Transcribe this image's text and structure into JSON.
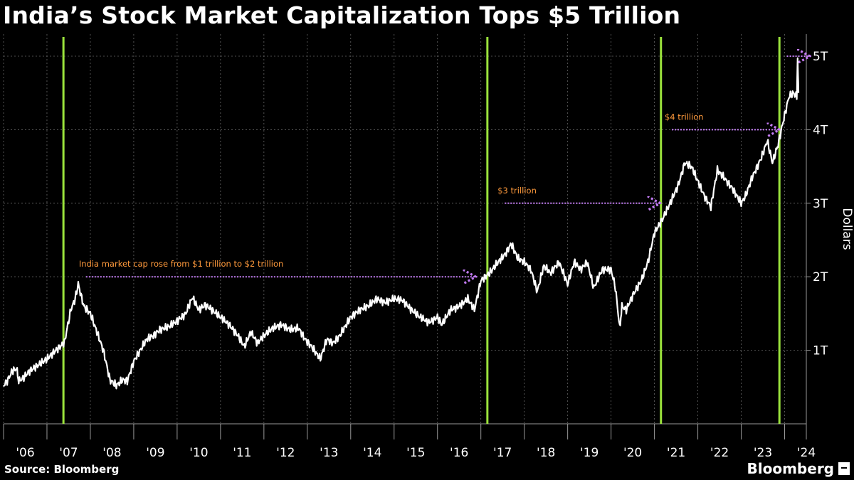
{
  "chart_data": {
    "type": "line",
    "title": "India’s Stock Market Capitalization Tops $5 Trillion",
    "ylabel": "Dollars",
    "ylim": [
      0,
      5.3
    ],
    "y_ticks": [
      {
        "value": 1,
        "label": "1T"
      },
      {
        "value": 2,
        "label": "2T"
      },
      {
        "value": 3,
        "label": "3T"
      },
      {
        "value": 4,
        "label": "4T"
      },
      {
        "value": 5,
        "label": "5T"
      }
    ],
    "xlim": [
      2006.0,
      2024.5
    ],
    "x_ticks": [
      "'06",
      "'07",
      "'08",
      "'09",
      "'10",
      "'11",
      "'12",
      "'13",
      "'14",
      "'15",
      "'16",
      "'17",
      "'18",
      "'19",
      "'20",
      "'21",
      "'22",
      "'23",
      "'24"
    ],
    "grid": true,
    "series": [
      {
        "name": "India market capitalization",
        "x": [
          2006.0,
          2006.1,
          2006.2,
          2006.3,
          2006.35,
          2006.45,
          2006.6,
          2006.8,
          2007.0,
          2007.2,
          2007.4,
          2007.55,
          2007.65,
          2007.72,
          2007.85,
          2008.0,
          2008.15,
          2008.3,
          2008.45,
          2008.6,
          2008.75,
          2008.85,
          2009.0,
          2009.15,
          2009.3,
          2009.45,
          2009.6,
          2009.8,
          2010.0,
          2010.2,
          2010.35,
          2010.5,
          2010.65,
          2010.8,
          2011.0,
          2011.2,
          2011.4,
          2011.55,
          2011.7,
          2011.85,
          2012.0,
          2012.2,
          2012.4,
          2012.6,
          2012.8,
          2012.95,
          2013.1,
          2013.3,
          2013.45,
          2013.6,
          2013.75,
          2014.0,
          2014.2,
          2014.4,
          2014.6,
          2014.8,
          2015.0,
          2015.2,
          2015.4,
          2015.6,
          2015.8,
          2016.0,
          2016.1,
          2016.3,
          2016.5,
          2016.7,
          2016.85,
          2017.0,
          2017.2,
          2017.4,
          2017.55,
          2017.7,
          2017.85,
          2018.0,
          2018.15,
          2018.3,
          2018.45,
          2018.6,
          2018.8,
          2019.0,
          2019.15,
          2019.3,
          2019.45,
          2019.6,
          2019.8,
          2020.0,
          2020.1,
          2020.2,
          2020.25,
          2020.35,
          2020.5,
          2020.7,
          2020.85,
          2021.0,
          2021.2,
          2021.4,
          2021.55,
          2021.7,
          2021.85,
          2022.0,
          2022.15,
          2022.3,
          2022.45,
          2022.6,
          2022.8,
          2023.0,
          2023.1,
          2023.25,
          2023.45,
          2023.6,
          2023.72,
          2023.85,
          2024.0,
          2024.1,
          2024.2,
          2024.28,
          2024.3,
          2024.32
        ],
        "values": [
          0.52,
          0.6,
          0.72,
          0.75,
          0.58,
          0.62,
          0.72,
          0.8,
          0.88,
          1.0,
          1.1,
          1.55,
          1.7,
          1.9,
          1.6,
          1.5,
          1.25,
          1.0,
          0.6,
          0.52,
          0.6,
          0.58,
          0.85,
          1.0,
          1.15,
          1.2,
          1.28,
          1.32,
          1.4,
          1.5,
          1.72,
          1.55,
          1.62,
          1.55,
          1.45,
          1.35,
          1.2,
          1.05,
          1.25,
          1.1,
          1.2,
          1.3,
          1.35,
          1.28,
          1.3,
          1.15,
          1.05,
          0.88,
          1.15,
          1.1,
          1.2,
          1.45,
          1.55,
          1.6,
          1.7,
          1.65,
          1.7,
          1.68,
          1.55,
          1.45,
          1.38,
          1.45,
          1.35,
          1.55,
          1.6,
          1.7,
          1.55,
          1.95,
          2.05,
          2.2,
          2.3,
          2.45,
          2.25,
          2.2,
          2.1,
          1.8,
          2.15,
          2.05,
          2.2,
          1.9,
          2.2,
          2.1,
          2.2,
          1.85,
          2.1,
          2.1,
          1.85,
          1.3,
          1.6,
          1.55,
          1.75,
          1.95,
          2.2,
          2.6,
          2.8,
          3.05,
          3.25,
          3.55,
          3.5,
          3.3,
          3.1,
          2.95,
          3.45,
          3.35,
          3.2,
          3.0,
          3.1,
          3.35,
          3.6,
          3.85,
          3.55,
          3.8,
          4.2,
          4.45,
          4.5,
          4.45,
          5.0,
          4.5
        ]
      }
    ],
    "milestones": [
      {
        "x": 2007.38,
        "from_x": 2007.9,
        "value": 2,
        "label": "India market cap rose from $1 trillion to $2 trillion"
      },
      {
        "x": 2017.15,
        "from_x": 2017.55,
        "value": 3,
        "label": "$3 trillion"
      },
      {
        "x": 2021.15,
        "from_x": 2021.4,
        "value": 4,
        "label": "$4 trillion"
      },
      {
        "x": 2023.88,
        "from_x": 2024.05,
        "value": 5,
        "label": ""
      }
    ],
    "vlines": [
      2007.38,
      2017.15,
      2021.15,
      2023.88
    ]
  },
  "footer": {
    "source": "Source: Bloomberg",
    "brand": "Bloomberg"
  }
}
